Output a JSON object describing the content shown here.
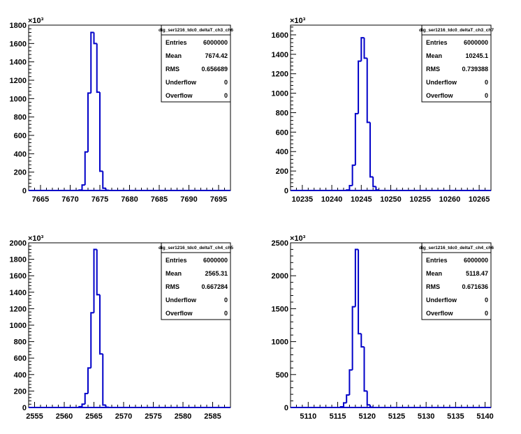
{
  "chart_data": [
    {
      "type": "histogram",
      "title": "dig_ser1216_tdc0_deltaT_ch3_ch6",
      "xlim": [
        7663,
        7697
      ],
      "x_ticks": [
        "7665",
        "7670",
        "7675",
        "7680",
        "7685",
        "7690",
        "7695"
      ],
      "ylim": [
        0,
        1800
      ],
      "y_ticks": [
        "0",
        "200",
        "400",
        "600",
        "800",
        "1000",
        "1200",
        "1400",
        "1600",
        "1800"
      ],
      "y_exponent": "×10³",
      "bin_width": 0.5,
      "bins_x": [
        7670.0,
        7670.5,
        7671.0,
        7671.5,
        7672.0,
        7672.5,
        7673.0,
        7673.5,
        7674.0,
        7674.5,
        7675.0,
        7675.5,
        7676.0,
        7676.5,
        7677.0
      ],
      "counts": [
        0,
        0,
        0,
        5,
        60,
        420,
        1060,
        1720,
        1600,
        1070,
        210,
        25,
        3,
        0,
        0
      ],
      "stats": {
        "entries_label": "Entries",
        "entries": "6000000",
        "mean_label": "Mean",
        "mean": "7674.42",
        "rms_label": "RMS",
        "rms": "0.656689",
        "underflow_label": "Underflow",
        "underflow": "0",
        "overflow_label": "Overflow",
        "overflow": "0"
      }
    },
    {
      "type": "histogram",
      "title": "dig_ser1216_tdc0_deltaT_ch3_ch7",
      "xlim": [
        10233,
        10267
      ],
      "x_ticks": [
        "10235",
        "10240",
        "10245",
        "10250",
        "10255",
        "10260",
        "10265"
      ],
      "ylim": [
        0,
        1700
      ],
      "y_ticks": [
        "0",
        "200",
        "400",
        "600",
        "800",
        "1000",
        "1200",
        "1400",
        "1600"
      ],
      "y_exponent": "×10³",
      "bin_width": 0.5,
      "bins_x": [
        10241.0,
        10241.5,
        10242.0,
        10242.5,
        10243.0,
        10243.5,
        10244.0,
        10244.5,
        10245.0,
        10245.5,
        10246.0,
        10246.5,
        10247.0,
        10247.5,
        10248.0
      ],
      "counts": [
        0,
        0,
        0,
        5,
        50,
        260,
        790,
        1330,
        1570,
        1360,
        700,
        140,
        40,
        5,
        0
      ],
      "stats": {
        "entries_label": "Entries",
        "entries": "6000000",
        "mean_label": "Mean",
        "mean": "10245.1",
        "rms_label": "RMS",
        "rms": "0.739388",
        "underflow_label": "Underflow",
        "underflow": "0",
        "overflow_label": "Overflow",
        "overflow": "0"
      }
    },
    {
      "type": "histogram",
      "title": "dig_ser1216_tdc0_deltaT_ch4_ch5",
      "xlim": [
        2554,
        2588
      ],
      "x_ticks": [
        "2555",
        "2560",
        "2565",
        "2570",
        "2575",
        "2580",
        "2585"
      ],
      "ylim": [
        0,
        2000
      ],
      "y_ticks": [
        "0",
        "200",
        "400",
        "600",
        "800",
        "1000",
        "1200",
        "1400",
        "1600",
        "1800",
        "2000"
      ],
      "y_exponent": "×10³",
      "bin_width": 0.5,
      "bins_x": [
        2561.0,
        2561.5,
        2562.0,
        2562.5,
        2563.0,
        2563.5,
        2564.0,
        2564.5,
        2565.0,
        2565.5,
        2566.0,
        2566.5,
        2567.0,
        2567.5,
        2568.0
      ],
      "counts": [
        0,
        0,
        0,
        10,
        40,
        170,
        480,
        1150,
        1920,
        1370,
        650,
        30,
        3,
        0,
        0
      ],
      "stats": {
        "entries_label": "Entries",
        "entries": "6000000",
        "mean_label": "Mean",
        "mean": "2565.31",
        "rms_label": "RMS",
        "rms": "0.667284",
        "underflow_label": "Underflow",
        "underflow": "0",
        "overflow_label": "Overflow",
        "overflow": "0"
      }
    },
    {
      "type": "histogram",
      "title": "dig_ser1216_tdc0_deltaT_ch4_ch6",
      "xlim": [
        5107,
        5141
      ],
      "x_ticks": [
        "5110",
        "5115",
        "5120",
        "5125",
        "5130",
        "5135",
        "5140"
      ],
      "ylim": [
        0,
        2500
      ],
      "y_ticks": [
        "0",
        "500",
        "1000",
        "1500",
        "2000",
        "2500"
      ],
      "y_exponent": "×10³",
      "bin_width": 0.5,
      "bins_x": [
        5114.0,
        5114.5,
        5115.0,
        5115.5,
        5116.0,
        5116.5,
        5117.0,
        5117.5,
        5118.0,
        5118.5,
        5119.0,
        5119.5,
        5120.0,
        5120.5,
        5121.0
      ],
      "counts": [
        0,
        0,
        0,
        10,
        70,
        190,
        570,
        1530,
        2400,
        1120,
        920,
        250,
        40,
        5,
        0
      ],
      "stats": {
        "entries_label": "Entries",
        "entries": "6000000",
        "mean_label": "Mean",
        "mean": "5118.47",
        "rms_label": "RMS",
        "rms": "0.671636",
        "underflow_label": "Underflow",
        "underflow": "0",
        "overflow_label": "Overflow",
        "overflow": "0"
      }
    }
  ],
  "colors": {
    "line": "#0000c8",
    "axis": "#000000",
    "background": "#ffffff"
  }
}
